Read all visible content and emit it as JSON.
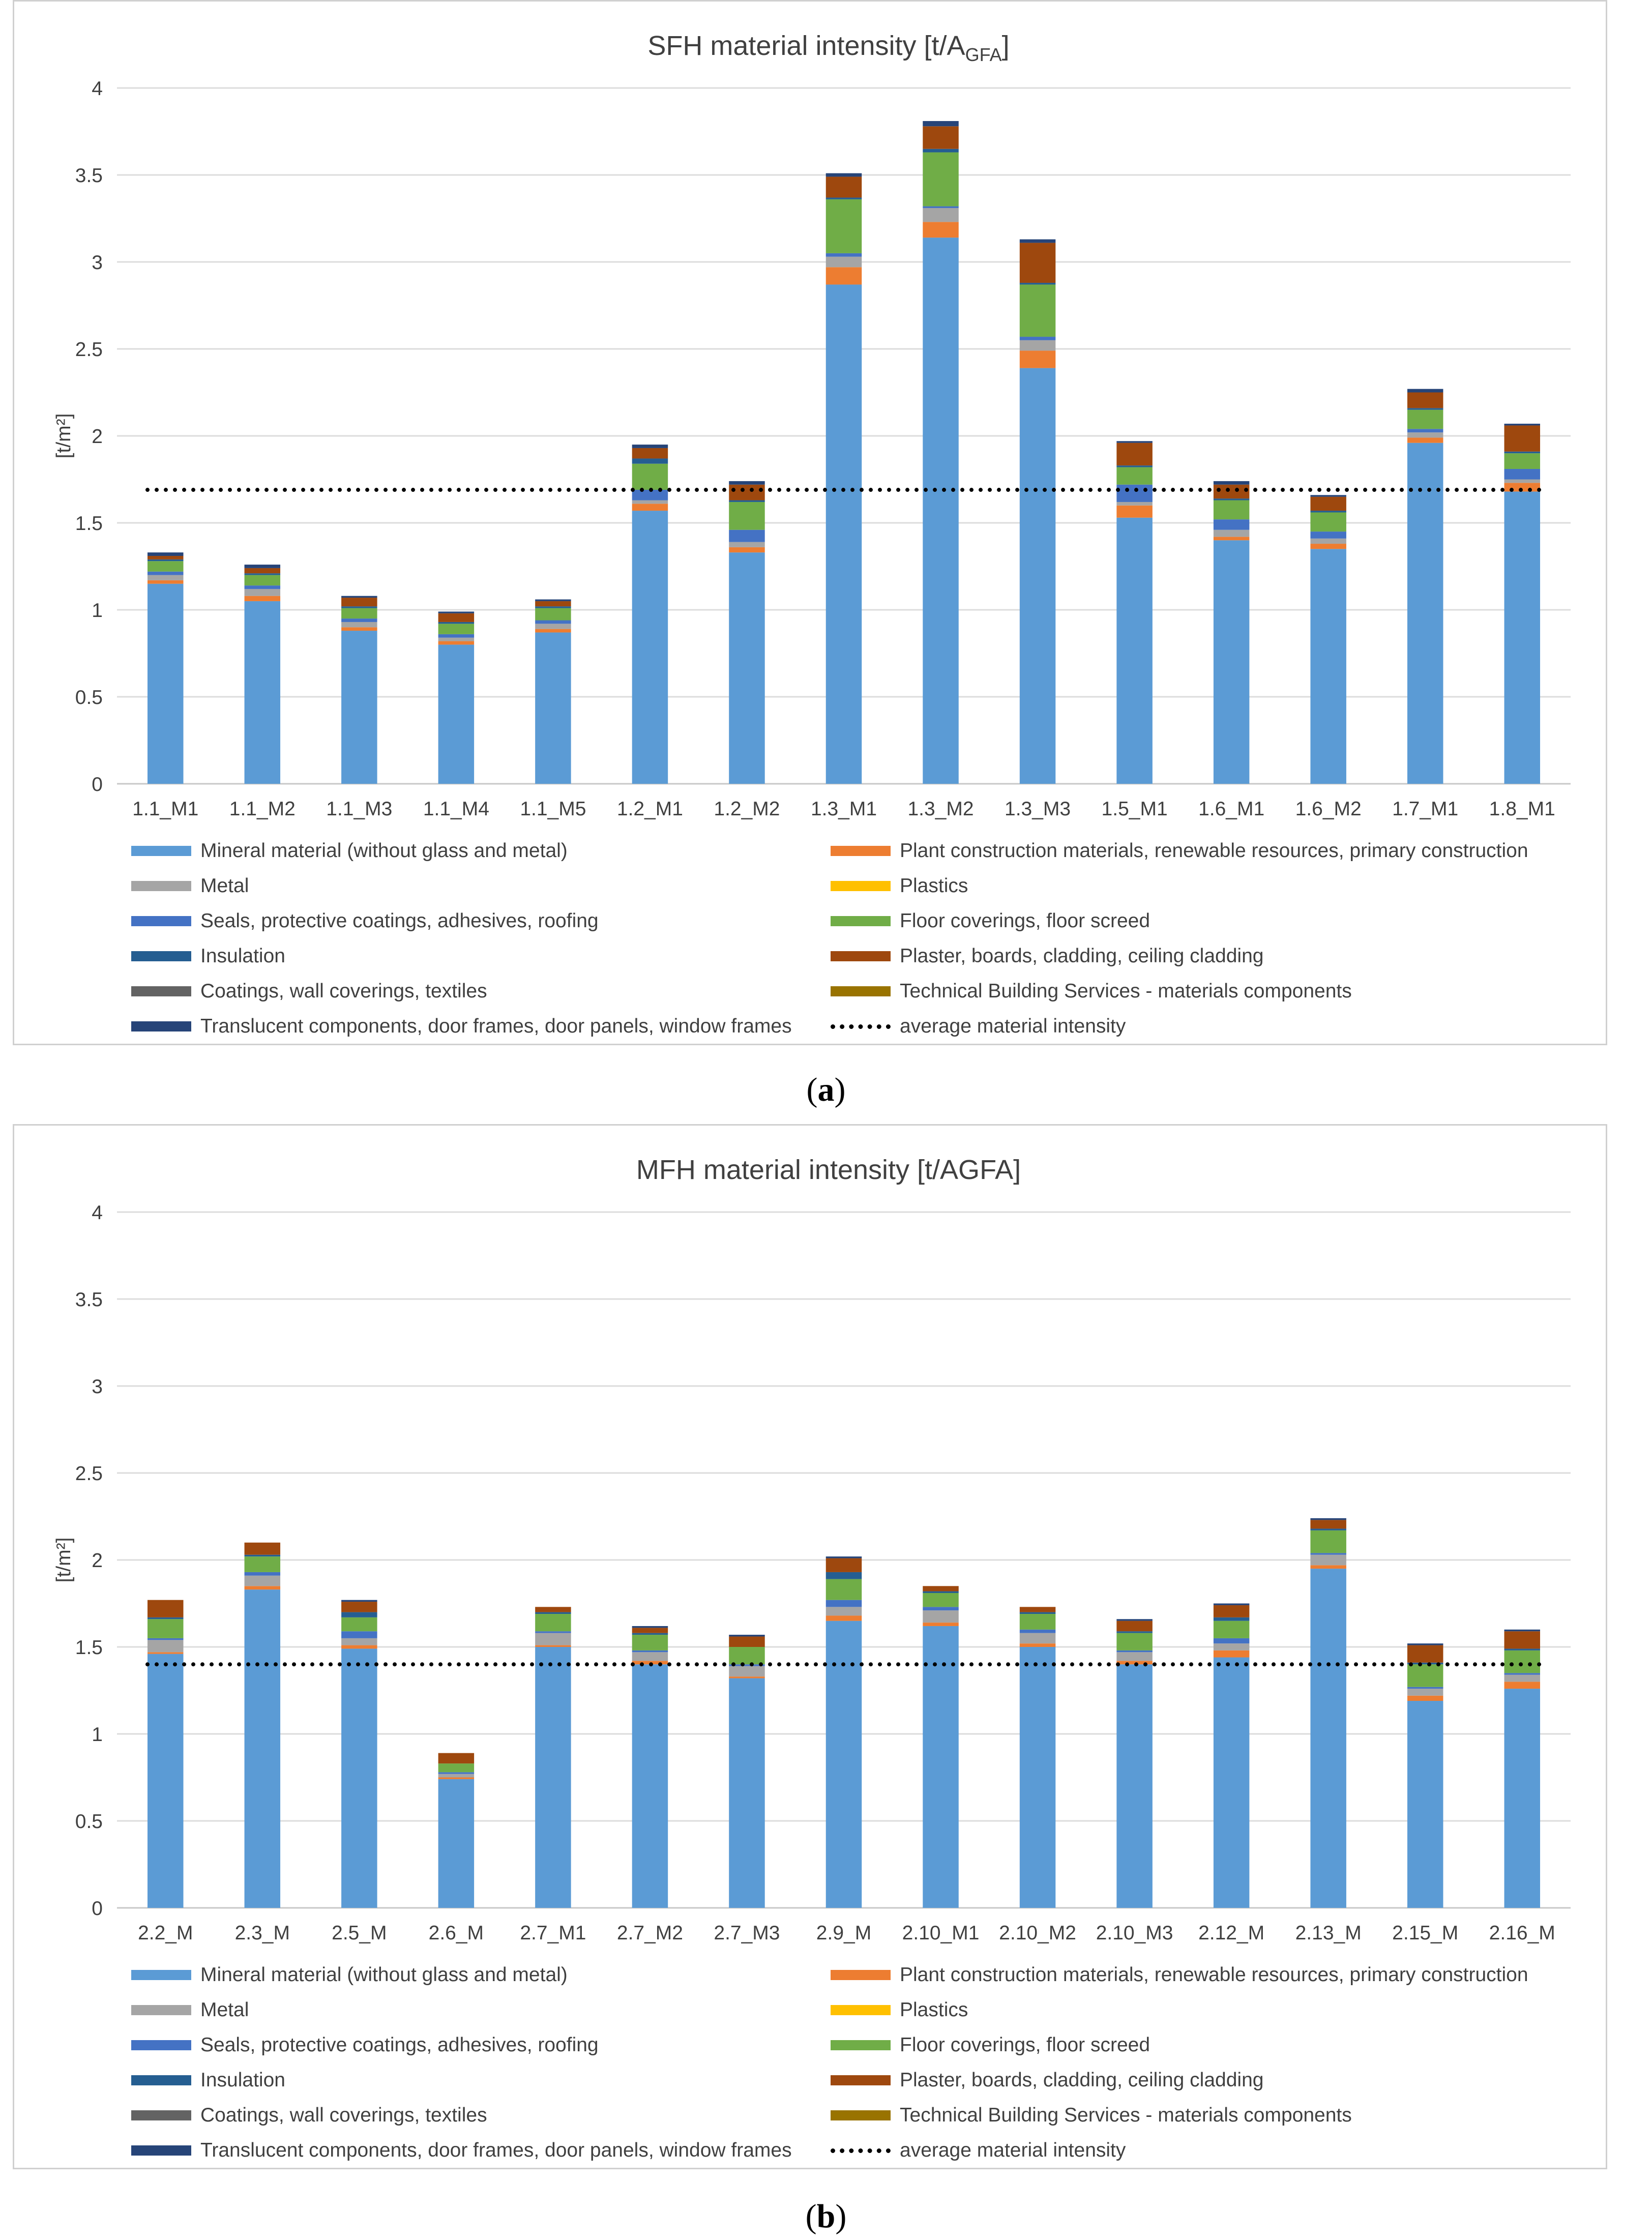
{
  "captions": {
    "a_letter": "a",
    "b_letter": "b"
  },
  "legend": [
    {
      "key": "mineral",
      "label": "Mineral material (without glass and metal)",
      "color": "#5b9bd5"
    },
    {
      "key": "plant",
      "label": "Plant construction materials, renewable resources, primary construction",
      "color": "#ed7d31"
    },
    {
      "key": "metal",
      "label": "Metal",
      "color": "#a5a5a5"
    },
    {
      "key": "plastics",
      "label": "Plastics",
      "color": "#ffc000"
    },
    {
      "key": "seals",
      "label": "Seals, protective coatings, adhesives, roofing",
      "color": "#4472c4"
    },
    {
      "key": "floor",
      "label": "Floor coverings, floor screed",
      "color": "#70ad47"
    },
    {
      "key": "insulation",
      "label": "Insulation",
      "color": "#255e91"
    },
    {
      "key": "plaster",
      "label": "Plaster, boards, cladding, ceiling cladding",
      "color": "#9e480e"
    },
    {
      "key": "coatings",
      "label": "Coatings, wall coverings, textiles",
      "color": "#636363"
    },
    {
      "key": "tbs",
      "label": "Technical Building Services - materials components",
      "color": "#997300"
    },
    {
      "key": "translucent",
      "label": "Translucent components, door frames, door panels, window frames",
      "color": "#264478"
    },
    {
      "key": "average",
      "label": "average material intensity",
      "color": "#000000"
    }
  ],
  "chart_data": [
    {
      "type": "bar",
      "stacked": true,
      "title": "SFH material intensity [t/A",
      "title_sub": "GFA",
      "title_end": "]",
      "ylabel": "[t/m²]",
      "ylim": [
        0,
        4
      ],
      "yticks": [
        "0",
        "0.5",
        "1",
        "1.5",
        "2",
        "2.5",
        "3",
        "3.5",
        "4"
      ],
      "gridlines": true,
      "average": 1.69,
      "categories": [
        "1.1_M1",
        "1.1_M2",
        "1.1_M3",
        "1.1_M4",
        "1.1_M5",
        "1.2_M1",
        "1.2_M2",
        "1.3_M1",
        "1.3_M2",
        "1.3_M3",
        "1.5_M1",
        "1.6_M1",
        "1.6_M2",
        "1.7_M1",
        "1.8_M1"
      ],
      "series": [
        {
          "name": "Mineral material (without glass and metal)",
          "values": [
            1.15,
            1.05,
            0.88,
            0.8,
            0.87,
            1.57,
            1.33,
            2.87,
            3.14,
            2.39,
            1.53,
            1.4,
            1.35,
            1.96,
            1.68
          ]
        },
        {
          "name": "Plant construction materials, renewable resources, primary construction",
          "values": [
            0.02,
            0.03,
            0.02,
            0.02,
            0.02,
            0.04,
            0.03,
            0.1,
            0.09,
            0.1,
            0.07,
            0.02,
            0.03,
            0.03,
            0.05
          ]
        },
        {
          "name": "Metal",
          "values": [
            0.03,
            0.04,
            0.03,
            0.02,
            0.03,
            0.02,
            0.03,
            0.06,
            0.08,
            0.06,
            0.02,
            0.04,
            0.03,
            0.03,
            0.02
          ]
        },
        {
          "name": "Plastics",
          "values": [
            0.0,
            0.0,
            0.0,
            0.0,
            0.0,
            0.0,
            0.0,
            0.0,
            0.0,
            0.0,
            0.0,
            0.0,
            0.0,
            0.0,
            0.0
          ]
        },
        {
          "name": "Seals, protective coatings, adhesives, roofing",
          "values": [
            0.02,
            0.02,
            0.02,
            0.02,
            0.02,
            0.06,
            0.07,
            0.02,
            0.01,
            0.02,
            0.1,
            0.06,
            0.04,
            0.02,
            0.06
          ]
        },
        {
          "name": "Floor coverings, floor screed",
          "values": [
            0.06,
            0.06,
            0.06,
            0.06,
            0.07,
            0.15,
            0.16,
            0.31,
            0.31,
            0.3,
            0.1,
            0.11,
            0.11,
            0.11,
            0.09
          ]
        },
        {
          "name": "Insulation",
          "values": [
            0.01,
            0.01,
            0.01,
            0.01,
            0.01,
            0.03,
            0.01,
            0.01,
            0.02,
            0.01,
            0.01,
            0.01,
            0.01,
            0.01,
            0.01
          ]
        },
        {
          "name": "Plaster, boards, cladding, ceiling cladding",
          "values": [
            0.02,
            0.03,
            0.05,
            0.05,
            0.03,
            0.06,
            0.09,
            0.12,
            0.13,
            0.23,
            0.13,
            0.08,
            0.08,
            0.09,
            0.15
          ]
        },
        {
          "name": "Coatings, wall coverings, textiles",
          "values": [
            0.0,
            0.0,
            0.0,
            0.0,
            0.0,
            0.0,
            0.0,
            0.0,
            0.0,
            0.0,
            0.0,
            0.0,
            0.0,
            0.0,
            0.0
          ]
        },
        {
          "name": "Technical Building Services - materials components",
          "values": [
            0.0,
            0.0,
            0.0,
            0.0,
            0.0,
            0.0,
            0.0,
            0.0,
            0.0,
            0.0,
            0.0,
            0.0,
            0.0,
            0.0,
            0.0
          ]
        },
        {
          "name": "Translucent components, door frames, door panels, window frames",
          "values": [
            0.02,
            0.02,
            0.01,
            0.01,
            0.01,
            0.02,
            0.02,
            0.02,
            0.03,
            0.02,
            0.01,
            0.02,
            0.01,
            0.02,
            0.01
          ]
        }
      ]
    },
    {
      "type": "bar",
      "stacked": true,
      "title": "MFH material intensity [t/AGFA]",
      "title_sub": "",
      "title_end": "",
      "ylabel": "[t/m²]",
      "ylim": [
        0,
        4
      ],
      "yticks": [
        "0",
        "0.5",
        "1",
        "1.5",
        "2",
        "2.5",
        "3",
        "3.5",
        "4"
      ],
      "gridlines": true,
      "average": 1.4,
      "categories": [
        "2.2_M",
        "2.3_M",
        "2.5_M",
        "2.6_M",
        "2.7_M1",
        "2.7_M2",
        "2.7_M3",
        "2.9_M",
        "2.10_M1",
        "2.10_M2",
        "2.10_M3",
        "2.12_M",
        "2.13_M",
        "2.15_M",
        "2.16_M"
      ],
      "series": [
        {
          "name": "Mineral material (without glass and metal)",
          "values": [
            1.46,
            1.83,
            1.49,
            0.74,
            1.5,
            1.4,
            1.32,
            1.65,
            1.62,
            1.5,
            1.4,
            1.44,
            1.95,
            1.19,
            1.26
          ]
        },
        {
          "name": "Plant construction materials, renewable resources, primary construction",
          "values": [
            0.01,
            0.02,
            0.02,
            0.01,
            0.01,
            0.02,
            0.01,
            0.03,
            0.02,
            0.02,
            0.02,
            0.04,
            0.02,
            0.03,
            0.04
          ]
        },
        {
          "name": "Metal",
          "values": [
            0.07,
            0.06,
            0.04,
            0.02,
            0.07,
            0.05,
            0.06,
            0.05,
            0.07,
            0.06,
            0.05,
            0.04,
            0.06,
            0.04,
            0.04
          ]
        },
        {
          "name": "Plastics",
          "values": [
            0.0,
            0.0,
            0.0,
            0.0,
            0.0,
            0.0,
            0.0,
            0.0,
            0.0,
            0.0,
            0.0,
            0.0,
            0.0,
            0.0,
            0.0
          ]
        },
        {
          "name": "Seals, protective coatings, adhesives, roofing",
          "values": [
            0.01,
            0.02,
            0.04,
            0.01,
            0.01,
            0.01,
            0.01,
            0.04,
            0.02,
            0.02,
            0.01,
            0.03,
            0.01,
            0.01,
            0.01
          ]
        },
        {
          "name": "Floor coverings, floor screed",
          "values": [
            0.11,
            0.09,
            0.08,
            0.05,
            0.1,
            0.09,
            0.1,
            0.12,
            0.08,
            0.09,
            0.1,
            0.1,
            0.13,
            0.13,
            0.13
          ]
        },
        {
          "name": "Insulation",
          "values": [
            0.01,
            0.01,
            0.03,
            0.0,
            0.01,
            0.01,
            0.0,
            0.04,
            0.01,
            0.01,
            0.01,
            0.02,
            0.01,
            0.01,
            0.01
          ]
        },
        {
          "name": "Plaster, boards, cladding, ceiling cladding",
          "values": [
            0.1,
            0.07,
            0.06,
            0.06,
            0.03,
            0.03,
            0.06,
            0.08,
            0.03,
            0.03,
            0.06,
            0.07,
            0.05,
            0.1,
            0.1
          ]
        },
        {
          "name": "Coatings, wall coverings, textiles",
          "values": [
            0.0,
            0.0,
            0.0,
            0.0,
            0.0,
            0.0,
            0.0,
            0.0,
            0.0,
            0.0,
            0.0,
            0.0,
            0.0,
            0.0,
            0.0
          ]
        },
        {
          "name": "Technical Building Services - materials components",
          "values": [
            0.0,
            0.0,
            0.0,
            0.0,
            0.0,
            0.0,
            0.0,
            0.0,
            0.0,
            0.0,
            0.0,
            0.0,
            0.0,
            0.0,
            0.0
          ]
        },
        {
          "name": "Translucent components, door frames, door panels, window frames",
          "values": [
            0.0,
            0.0,
            0.01,
            0.0,
            0.0,
            0.01,
            0.01,
            0.01,
            0.0,
            0.0,
            0.01,
            0.01,
            0.01,
            0.01,
            0.01
          ]
        }
      ]
    }
  ]
}
